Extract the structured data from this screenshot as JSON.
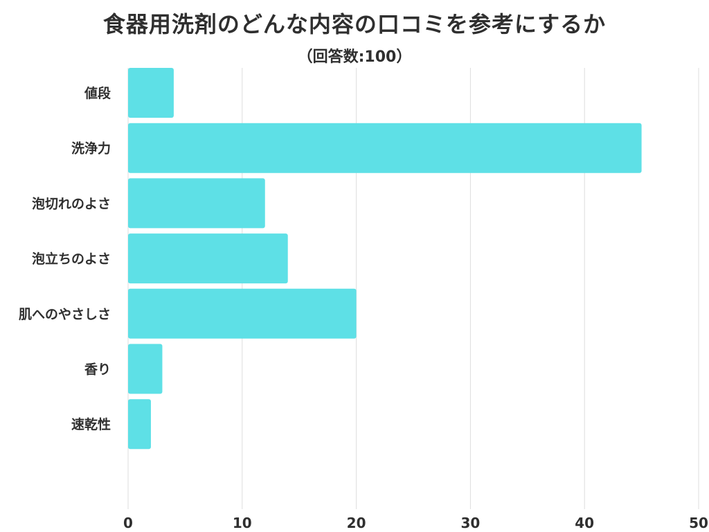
{
  "chart_data": {
    "type": "bar",
    "orientation": "horizontal",
    "title": "食器用洗剤のどんな内容の口コミを参考にするか",
    "subtitle": "（回答数:100）",
    "categories": [
      "値段",
      "洗浄力",
      "泡切れのよさ",
      "泡立ちのよさ",
      "肌へのやさしさ",
      "香り",
      "速乾性"
    ],
    "values": [
      4,
      45,
      12,
      14,
      20,
      3,
      2
    ],
    "xlim": [
      0,
      50
    ],
    "xticks": [
      "0",
      "10",
      "20",
      "30",
      "40",
      "50"
    ],
    "grid": true,
    "bar_color": "#5ee0e6",
    "grid_color": "#dddddd"
  }
}
